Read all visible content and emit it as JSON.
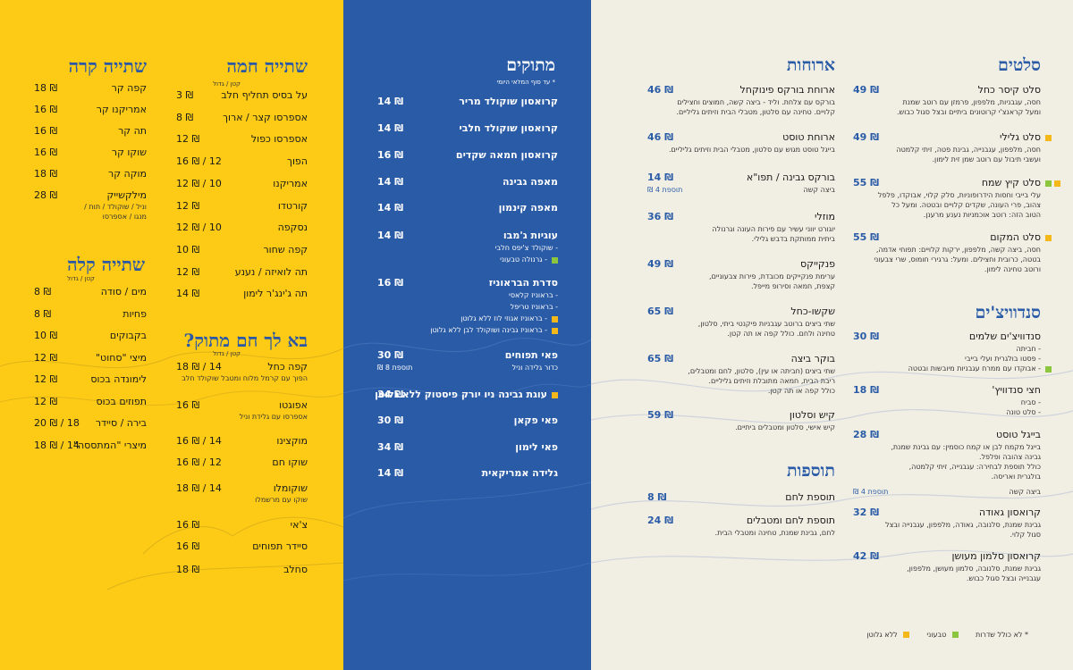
{
  "colors": {
    "yellow": "#FDCB16",
    "blue": "#2A5BA6",
    "cream": "#F1EFE4",
    "green": "#8CC63F",
    "gold": "#F4B81B"
  },
  "cold_drinks": {
    "title": "שתייה קרה",
    "items": [
      {
        "name": "קפה קר",
        "price": "18 ₪"
      },
      {
        "name": "אמריקנו קר",
        "price": "16 ₪"
      },
      {
        "name": "תה קר",
        "price": "16 ₪"
      },
      {
        "name": "שוקו קר",
        "price": "16 ₪"
      },
      {
        "name": "מוקה קר",
        "price": "18 ₪"
      },
      {
        "name": "מילקשייק",
        "price": "28 ₪",
        "sub1": "וניל / שוקולד / תות /",
        "sub2": "מנגו / אספרסו"
      }
    ]
  },
  "hot_drinks": {
    "title": "שתייה חמה",
    "size_header": "קטן  /  גדול",
    "items": [
      {
        "name": "על בסיס תחליף חלב",
        "price": "3 ₪"
      },
      {
        "name": "אספרסו קצר / ארוך",
        "price": "8 ₪"
      },
      {
        "name": "אספרסו כפול",
        "price": "12 ₪"
      },
      {
        "name": "הפוך",
        "price": "16 ₪ / 12"
      },
      {
        "name": "אמריקנו",
        "price": "12 ₪ / 10"
      },
      {
        "name": "קורטדו",
        "price": "12 ₪"
      },
      {
        "name": "נסקפה",
        "price": "12 ₪ / 10"
      },
      {
        "name": "קפה שחור",
        "price": "10 ₪"
      },
      {
        "name": "תה לואיזה / נענע",
        "price": "12 ₪"
      },
      {
        "name": "תה ג'ינג'ר לימון",
        "price": "14 ₪"
      }
    ]
  },
  "light_drinks": {
    "title": "שתייה קלה",
    "size_header": "קטן  /  גדול",
    "items": [
      {
        "name": "מים / סודה",
        "price": "8 ₪"
      },
      {
        "name": "פחיות",
        "price": "8 ₪"
      },
      {
        "name": "בקבוקים",
        "price": "10 ₪"
      },
      {
        "name": "מיצי \"סחוט\"",
        "price": "12 ₪"
      },
      {
        "name": "לימונדה בכוס",
        "price": "12 ₪"
      },
      {
        "name": "תפוזים בכוס",
        "price": "12 ₪"
      },
      {
        "name": "בירה / סיידר",
        "price": "20 ₪ / 18"
      },
      {
        "name": "מיצרי \"המתססה\"",
        "price": "18 ₪ / 14"
      }
    ]
  },
  "sweet_warm": {
    "title": "בא לך חם מתוק?",
    "size_header": "קטן  /  גדול",
    "items": [
      {
        "name": "קפה כחל",
        "price": "18 ₪ / 14",
        "sub": "הפוך עם קרמל מלוח ומטבל שוקולד חלב"
      },
      {
        "name": "אפוגטו",
        "price": "16 ₪",
        "sub": "אספרסו עם גלידת וניל"
      },
      {
        "name": "מוקצינו",
        "price": "16 ₪ / 14"
      },
      {
        "name": "שוקו חם",
        "price": "16 ₪ / 12"
      },
      {
        "name": "שוקומלו",
        "price": "18 ₪ / 14",
        "sub": "שוקו עם מרשמלו"
      },
      {
        "name": "צ'אי",
        "price": "16 ₪"
      },
      {
        "name": "סיידר תפוחים",
        "price": "16 ₪"
      },
      {
        "name": "סחלב",
        "price": "18 ₪"
      }
    ]
  },
  "desserts": {
    "title": "מתוקים",
    "note": "* עד סוף המלאי היומי",
    "items": [
      {
        "name": "קרואסון שוקולד מריר",
        "price": "14 ₪"
      },
      {
        "name": "קרואסון שוקולד חלבי",
        "price": "14 ₪"
      },
      {
        "name": "קרואסון חמאה שקדים",
        "price": "16 ₪"
      },
      {
        "name": "מאפה גבינה",
        "price": "14 ₪"
      },
      {
        "name": "מאפה קינמון",
        "price": "14 ₪"
      },
      {
        "name": "עוגיות ג'מבו",
        "price": "14 ₪",
        "subs": [
          {
            "text": "- שוקולד צ'יפס חלבי",
            "mark": ""
          },
          {
            "text": "- גרנולה טבעוני",
            "mark": "green"
          }
        ]
      },
      {
        "name": "סדרת הבראוניז",
        "price": "16 ₪",
        "subs": [
          {
            "text": "- בראוניז קלאסי",
            "mark": ""
          },
          {
            "text": "- בראוניז טריפל",
            "mark": ""
          },
          {
            "text": "- בראוניז אגוזי לוז ללא גלוטן",
            "mark": "gold"
          },
          {
            "text": "- בראוניז גבינה ושוקולד לבן ללא גלוטן",
            "mark": "gold"
          }
        ]
      },
      {
        "name": "פאי תפוחים",
        "price": "30 ₪",
        "sub": "כדור גלידה וניל",
        "extra": "תוספת 8 ₪"
      },
      {
        "name": "עוגת גבינה ניו יורק פיסטוק ללא גלוטן",
        "price": "34 ₪",
        "mark": "gold"
      },
      {
        "name": "פאי פקאן",
        "price": "30 ₪"
      },
      {
        "name": "פאי לימון",
        "price": "34 ₪"
      },
      {
        "name": "גלידה אמריקאית",
        "price": "14 ₪"
      }
    ]
  },
  "meals": {
    "title": "ארוחות",
    "items": [
      {
        "name": "ארוחת בורקס פינוקחל",
        "price": "46 ₪",
        "desc": [
          "בורקס עם צלחת. וליד - ביצה קשה, חמוצים וחצילים",
          "קלויים. טחינה עם סלטון, מטבלי הבית וזיתים גליליים."
        ]
      },
      {
        "name": "ארוחת טוסט",
        "price": "46 ₪",
        "desc": [
          "בייגל טוסט מגוש עם סלטון, מטבלי הבית וזיתים גליליים."
        ]
      },
      {
        "name": "בורקס גבינה / תפו\"א",
        "price": "14 ₪",
        "desc": [
          "ביצה קשה"
        ],
        "extra": "תוספת 4 ₪"
      },
      {
        "name": "מוזלי",
        "price": "36 ₪",
        "desc": [
          "יוגורט יווני עשיר עם פירות העונה וגרנולה",
          "ביתית ממותקת בדבש גלילי."
        ]
      },
      {
        "name": "פנקייקס",
        "price": "49 ₪",
        "desc": [
          "ערימת פנקייקים מכובדת, פירות צבעוניים,",
          "קצפת, חמאה וסירופ מייפל."
        ]
      },
      {
        "name": "שקשו-כחל",
        "price": "65 ₪",
        "desc": [
          "שתי ביצים ברוטב עגבניות פיקנטי ביתי, סלטון,",
          "טחינה ולחם. כולל קפה או תה קטן."
        ]
      },
      {
        "name": "בוקר ביצה",
        "price": "65 ₪",
        "desc": [
          "שתי ביצים (חביתה או עין), סלטון, לחם ומטבלים,",
          "ריבת הבית, חמאה מתובלת וזיתים גליליים.",
          "כולל קפה או תה קטן."
        ]
      },
      {
        "name": "קיש וסלטון",
        "price": "59 ₪",
        "desc": [
          "קיש אישי, סלטון ומטבלים ביתיים."
        ]
      }
    ]
  },
  "extras": {
    "title": "תוספות",
    "items": [
      {
        "name": "תוספת לחם",
        "price": "8 ₪"
      },
      {
        "name": "תוספת לחם ומטבלים",
        "price": "24 ₪",
        "desc": [
          "לחם, גבינת שמנת, טחינה ומטבלי הבית."
        ]
      }
    ]
  },
  "salads": {
    "title": "סלטים",
    "items": [
      {
        "name": "סלט קיסר כחל",
        "price": "49 ₪",
        "desc": [
          "חסה, עגבניות, מלפפון, פרמזן עם רוטב שמנת",
          "ומעל קראנצ'י קרוטונים ביתיים ובצל סגול כבוש."
        ]
      },
      {
        "name": "סלט גלילי",
        "price": "49 ₪",
        "mark": "gold",
        "desc": [
          "חסה, מלפפון, עגבנייה, גבינת פטה, זיתי קלמטה",
          "ועשבי תיבול עם רוטב שמן זית לימון."
        ]
      },
      {
        "name": "סלט קיץ שמח",
        "price": "55 ₪",
        "mark": "both",
        "desc": [
          "עלי בייבי וחסות הידרופוניות, סלק קלוי, אבוקדו, פלפל",
          "צהוב, פרי העונה, שקדים קלויים ובטטה. ומעל כל",
          "הטוב הזה: רוטב אוכמניות נענע מרענן."
        ]
      },
      {
        "name": "סלט המקום",
        "price": "55 ₪",
        "mark": "gold",
        "desc": [
          "חסה, ביצה קשה, מלפפון, ירקות קלויים: תפוחי אדמה,",
          "בטטה, כרובית וחצילים. ומעל: גרגירי חומוס, שרי צבעוני",
          "ורוטב טחינה לימון."
        ]
      }
    ]
  },
  "sandwiches": {
    "title": "סנדוויצ'ים",
    "items": [
      {
        "name": "סנדוויצ'ים שלמים",
        "price": "30 ₪",
        "subs": [
          {
            "text": "- חביתה",
            "mark": ""
          },
          {
            "text": "- פסטו בולגרית ועלי בייבי",
            "mark": ""
          },
          {
            "text": "- אבוקדו עם ממרח עגבניות מיובשות ובטטה",
            "mark": "green"
          }
        ]
      },
      {
        "name": "חצי סנדוויץ'",
        "price": "18 ₪",
        "subs": [
          {
            "text": "- סביח",
            "mark": ""
          },
          {
            "text": "- סלט טונה",
            "mark": ""
          }
        ]
      },
      {
        "name": "בייגל טוסט",
        "price": "28 ₪",
        "desc": [
          "בייגל מקמח לבן או קמח כוסמין: עם גבינת שמנת,",
          "גבינה צהובה ופלפל.",
          "כולל תוספת לבחירה: עגבנייה, זיתי קלמטה,",
          "בולגרית ואריסה."
        ],
        "sub2": "ביצה קשה",
        "extra": "תוספת 4 ₪"
      },
      {
        "name": "קרואסון גאודה",
        "price": "32 ₪",
        "desc": [
          "גבינת שמנת, סלנובה, גאודה, מלפפון, עגבנייה ובצל",
          "סגול קלוי."
        ]
      },
      {
        "name": "קרואסון סלמון מעושן",
        "price": "42 ₪",
        "desc": [
          "גבינת שמנת, סלנובה, סלמון מעושן, מלפפון,",
          "עגבנייה ובצל סגול כבוש."
        ]
      }
    ]
  },
  "legend": {
    "gluten_free": "ללא גלוטן",
    "vegan": "טבעוני",
    "note": "* לא כולל שדרות"
  }
}
